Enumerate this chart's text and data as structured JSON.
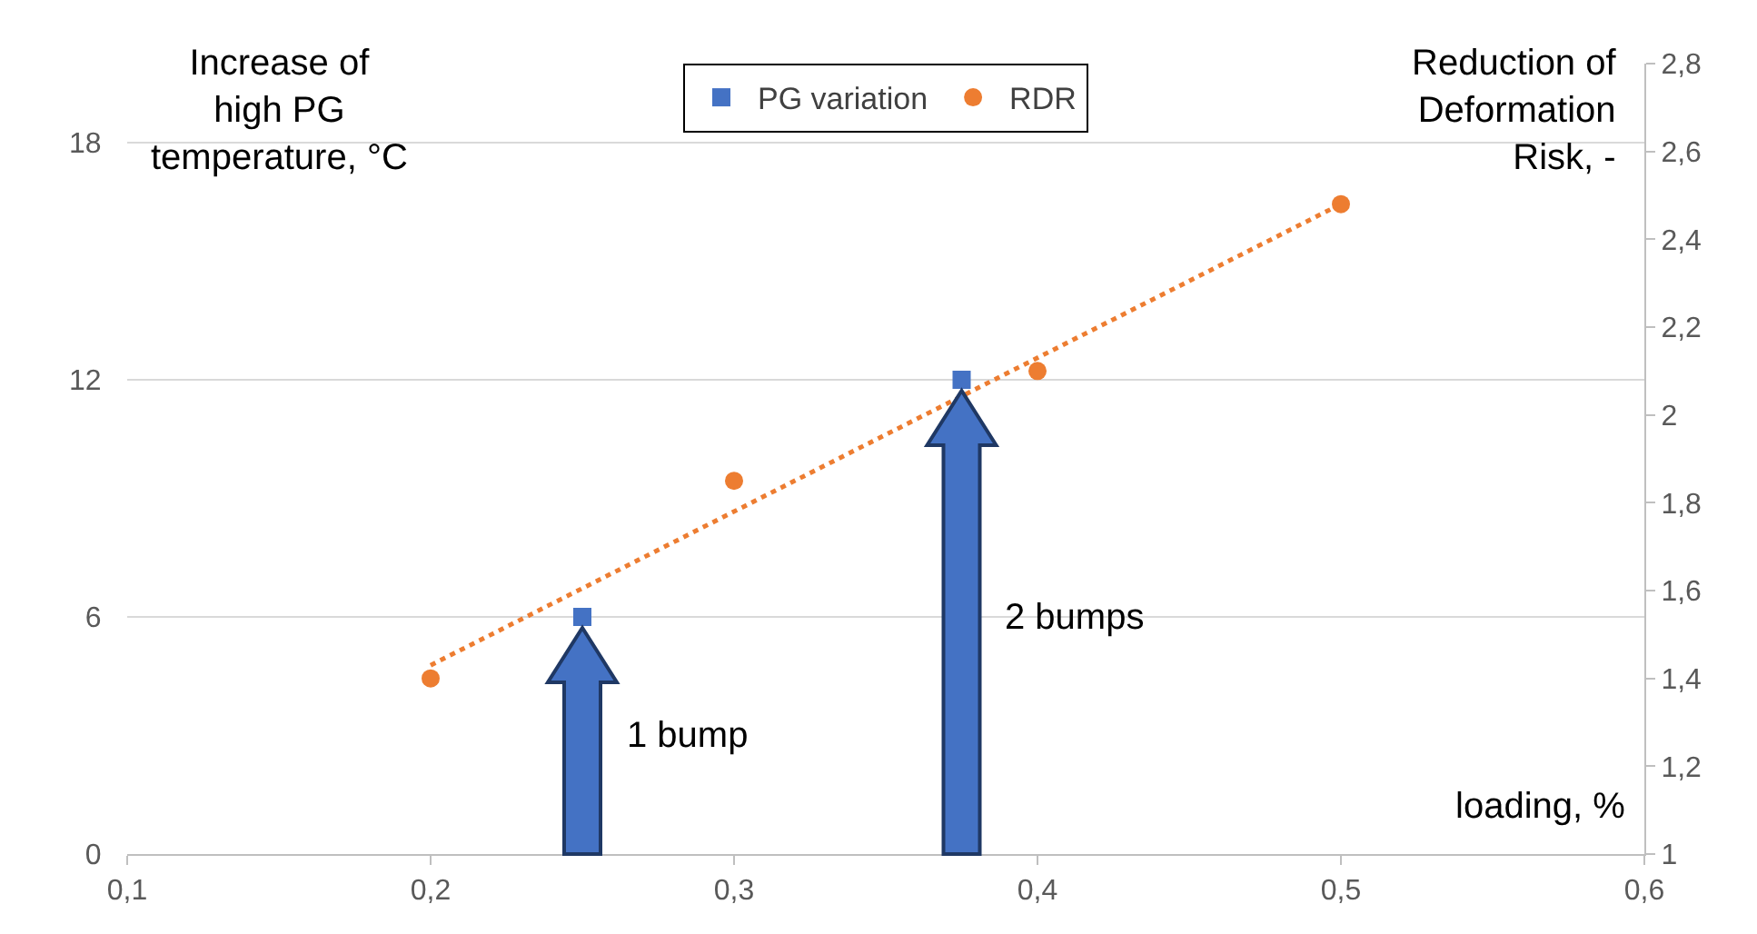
{
  "chart_data": {
    "type": "scatter",
    "xlabel": "loading, %",
    "ylabel": "Increase of\nhigh PG\ntemperature, °C",
    "y2label": "Reduction of\nDeformation\nRisk, -",
    "xlim": [
      0.1,
      0.6
    ],
    "xticks": [
      {
        "value": 0.1,
        "label": "0,1"
      },
      {
        "value": 0.2,
        "label": "0,2"
      },
      {
        "value": 0.3,
        "label": "0,3"
      },
      {
        "value": 0.4,
        "label": "0,4"
      },
      {
        "value": 0.5,
        "label": "0,5"
      },
      {
        "value": 0.6,
        "label": "0,6"
      }
    ],
    "ylim": [
      0,
      20
    ],
    "yticks": [
      0,
      6,
      12,
      18
    ],
    "y2lim": [
      1,
      2.8
    ],
    "y2ticks": [
      1,
      {
        "value": 1.2,
        "label": "1,2"
      },
      {
        "value": 1.4,
        "label": "1,4"
      },
      {
        "value": 1.6,
        "label": "1,6"
      },
      {
        "value": 1.8,
        "label": "1,8"
      },
      2,
      {
        "value": 2.2,
        "label": "2,2"
      },
      {
        "value": 2.4,
        "label": "2,4"
      },
      {
        "value": 2.6,
        "label": "2,6"
      },
      {
        "value": 2.8,
        "label": "2,8"
      }
    ],
    "grid": "y",
    "legend": "top",
    "series": [
      {
        "name": "PG variation",
        "type": "scatter",
        "marker": "square",
        "color": "#4472c4",
        "x": [
          0.25,
          0.375
        ],
        "values": [
          6,
          12
        ]
      },
      {
        "name": "RDR",
        "type": "scatter",
        "marker": "circle",
        "color": "#ed7d31",
        "axis": "y2",
        "x": [
          0.2,
          0.3,
          0.4,
          0.5
        ],
        "values": [
          1.4,
          1.85,
          2.1,
          2.48
        ]
      },
      {
        "type": "line",
        "marker": "none",
        "line_style": "dotted",
        "color": "#ed7d31",
        "axis": "y2",
        "x": [
          0.2,
          0.5
        ],
        "values": [
          1.43,
          2.48
        ]
      }
    ],
    "annotations": [
      "1 bump",
      "2 bumps"
    ]
  }
}
